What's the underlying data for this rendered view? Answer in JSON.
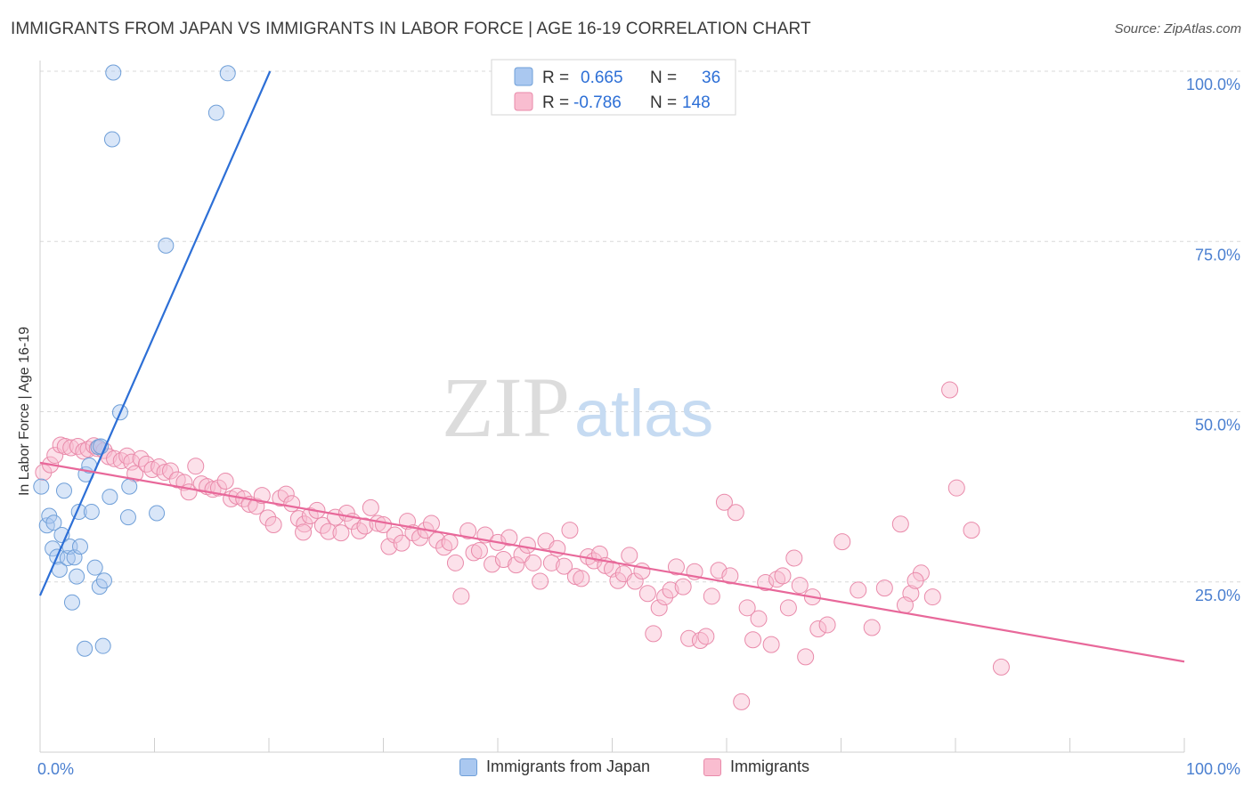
{
  "header": {
    "title": "IMMIGRANTS FROM JAPAN VS IMMIGRANTS IN LABOR FORCE | AGE 16-19 CORRELATION CHART",
    "source": "Source: ZipAtlas.com"
  },
  "watermark": {
    "part1": "ZIP",
    "part2": "atlas"
  },
  "legend_top": {
    "rows": [
      {
        "r_label": "R =",
        "r_value": "0.665",
        "n_label": "N =",
        "n_value": "36",
        "color": "#aac8f0",
        "border": "#6f9fd8"
      },
      {
        "r_label": "R =",
        "r_value": "-0.786",
        "n_label": "N =",
        "n_value": "148",
        "color": "#f9bdd0",
        "border": "#e98aaa"
      }
    ]
  },
  "colors": {
    "blue_fill": "rgba(170,200,240,0.45)",
    "blue_stroke": "#6f9fd8",
    "blue_line": "#2d6fd6",
    "pink_fill": "rgba(249,189,208,0.45)",
    "pink_stroke": "#e98aaa",
    "pink_line": "#e8689a",
    "tick_text": "#4a7fd0",
    "grid": "#d8d8d8"
  },
  "chart_data": {
    "type": "scatter",
    "title": "IMMIGRANTS FROM JAPAN VS IMMIGRANTS IN LABOR FORCE | AGE 16-19 CORRELATION CHART",
    "xlabel": "",
    "ylabel": "In Labor Force | Age 16-19",
    "xlim": [
      0,
      100
    ],
    "ylim": [
      0,
      105
    ],
    "x_tick_labels": [
      "0.0%",
      "100.0%"
    ],
    "y_ticks": [
      25,
      50,
      75,
      100
    ],
    "y_tick_labels": [
      "25.0%",
      "50.0%",
      "75.0%",
      "100.0%"
    ],
    "grid": "horizontal dashed",
    "legend_position": "bottom",
    "series": [
      {
        "name": "Immigrants from Japan",
        "R": 0.665,
        "N": 36,
        "trend": [
          [
            0.0,
            23.0
          ],
          [
            20.1,
            100.0
          ]
        ],
        "points": [
          [
            0.1,
            39.0
          ],
          [
            0.6,
            33.3
          ],
          [
            0.8,
            34.7
          ],
          [
            1.1,
            29.9
          ],
          [
            1.2,
            33.7
          ],
          [
            1.5,
            28.7
          ],
          [
            1.7,
            26.8
          ],
          [
            1.9,
            31.9
          ],
          [
            2.1,
            38.4
          ],
          [
            2.4,
            28.5
          ],
          [
            2.6,
            30.2
          ],
          [
            2.8,
            22.0
          ],
          [
            3.0,
            28.6
          ],
          [
            3.2,
            25.8
          ],
          [
            3.4,
            35.3
          ],
          [
            3.5,
            30.2
          ],
          [
            3.9,
            15.2
          ],
          [
            4.0,
            40.8
          ],
          [
            4.3,
            42.1
          ],
          [
            4.5,
            35.3
          ],
          [
            4.8,
            27.1
          ],
          [
            5.2,
            24.3
          ],
          [
            5.1,
            44.8
          ],
          [
            5.5,
            15.6
          ],
          [
            5.6,
            25.2
          ],
          [
            6.1,
            37.5
          ],
          [
            6.3,
            90.0
          ],
          [
            6.4,
            99.8
          ],
          [
            7.0,
            49.9
          ],
          [
            7.7,
            34.5
          ],
          [
            7.8,
            39.0
          ],
          [
            10.2,
            35.1
          ],
          [
            11.0,
            74.4
          ],
          [
            15.4,
            93.9
          ],
          [
            16.4,
            99.7
          ],
          [
            5.3,
            44.9
          ]
        ]
      },
      {
        "name": "Immigrants",
        "R": -0.786,
        "N": 148,
        "trend": [
          [
            0.0,
            42.5
          ],
          [
            100.0,
            13.3
          ]
        ],
        "points": [
          [
            0.3,
            41.1
          ],
          [
            0.9,
            42.2
          ],
          [
            1.3,
            43.6
          ],
          [
            1.8,
            45.1
          ],
          [
            2.2,
            44.9
          ],
          [
            2.7,
            44.7
          ],
          [
            3.3,
            44.9
          ],
          [
            3.8,
            44.2
          ],
          [
            4.2,
            44.5
          ],
          [
            4.7,
            45.0
          ],
          [
            5.0,
            44.6
          ],
          [
            5.6,
            44.3
          ],
          [
            6.0,
            43.4
          ],
          [
            6.5,
            43.1
          ],
          [
            7.1,
            42.8
          ],
          [
            7.6,
            43.5
          ],
          [
            8.0,
            42.6
          ],
          [
            8.3,
            40.9
          ],
          [
            8.8,
            43.1
          ],
          [
            9.3,
            42.3
          ],
          [
            9.8,
            41.5
          ],
          [
            10.4,
            41.9
          ],
          [
            10.9,
            41.1
          ],
          [
            11.4,
            41.3
          ],
          [
            12.0,
            40.0
          ],
          [
            12.6,
            39.6
          ],
          [
            13.0,
            38.2
          ],
          [
            13.6,
            42.0
          ],
          [
            14.1,
            39.4
          ],
          [
            14.6,
            39.0
          ],
          [
            15.1,
            38.6
          ],
          [
            15.6,
            38.8
          ],
          [
            16.2,
            39.8
          ],
          [
            16.7,
            37.2
          ],
          [
            17.2,
            37.6
          ],
          [
            17.8,
            37.2
          ],
          [
            18.3,
            36.4
          ],
          [
            18.9,
            36.1
          ],
          [
            19.4,
            37.7
          ],
          [
            19.9,
            34.4
          ],
          [
            20.4,
            33.4
          ],
          [
            21.0,
            37.3
          ],
          [
            21.5,
            37.9
          ],
          [
            22.0,
            36.5
          ],
          [
            22.6,
            34.3
          ],
          [
            23.1,
            33.5
          ],
          [
            23.6,
            34.7
          ],
          [
            24.2,
            35.5
          ],
          [
            24.7,
            33.3
          ],
          [
            25.2,
            32.4
          ],
          [
            25.8,
            34.5
          ],
          [
            26.3,
            32.2
          ],
          [
            26.8,
            35.1
          ],
          [
            27.3,
            33.9
          ],
          [
            27.9,
            32.5
          ],
          [
            28.4,
            33.2
          ],
          [
            28.9,
            35.9
          ],
          [
            29.5,
            33.6
          ],
          [
            30.0,
            33.4
          ],
          [
            30.5,
            30.2
          ],
          [
            31.0,
            31.9
          ],
          [
            31.6,
            30.7
          ],
          [
            32.1,
            33.9
          ],
          [
            32.6,
            32.2
          ],
          [
            33.2,
            31.5
          ],
          [
            33.7,
            32.6
          ],
          [
            34.2,
            33.6
          ],
          [
            34.7,
            31.1
          ],
          [
            35.3,
            30.1
          ],
          [
            35.8,
            30.8
          ],
          [
            36.3,
            27.8
          ],
          [
            36.8,
            22.9
          ],
          [
            37.4,
            32.5
          ],
          [
            37.9,
            29.3
          ],
          [
            38.4,
            29.6
          ],
          [
            38.9,
            31.9
          ],
          [
            39.5,
            27.6
          ],
          [
            40.0,
            30.8
          ],
          [
            40.5,
            28.3
          ],
          [
            41.0,
            31.5
          ],
          [
            41.6,
            27.5
          ],
          [
            42.1,
            29.0
          ],
          [
            42.6,
            30.4
          ],
          [
            43.1,
            27.8
          ],
          [
            43.7,
            25.1
          ],
          [
            44.2,
            31.0
          ],
          [
            44.7,
            27.8
          ],
          [
            45.2,
            29.9
          ],
          [
            45.8,
            27.3
          ],
          [
            46.3,
            32.6
          ],
          [
            46.8,
            25.8
          ],
          [
            47.3,
            25.5
          ],
          [
            47.9,
            28.7
          ],
          [
            48.4,
            28.1
          ],
          [
            48.9,
            29.1
          ],
          [
            49.4,
            27.4
          ],
          [
            50.0,
            26.9
          ],
          [
            50.5,
            25.2
          ],
          [
            51.0,
            26.2
          ],
          [
            51.5,
            28.9
          ],
          [
            52.0,
            25.1
          ],
          [
            52.6,
            26.6
          ],
          [
            53.1,
            23.3
          ],
          [
            53.6,
            17.4
          ],
          [
            54.1,
            21.2
          ],
          [
            54.6,
            22.8
          ],
          [
            55.1,
            23.8
          ],
          [
            55.6,
            27.2
          ],
          [
            56.2,
            24.3
          ],
          [
            56.7,
            16.7
          ],
          [
            57.2,
            26.5
          ],
          [
            57.7,
            16.4
          ],
          [
            58.2,
            17.0
          ],
          [
            58.7,
            22.9
          ],
          [
            59.3,
            26.7
          ],
          [
            59.8,
            36.7
          ],
          [
            60.3,
            25.9
          ],
          [
            60.8,
            35.2
          ],
          [
            61.3,
            7.4
          ],
          [
            61.8,
            21.2
          ],
          [
            62.3,
            16.5
          ],
          [
            62.8,
            19.6
          ],
          [
            63.4,
            24.9
          ],
          [
            63.9,
            15.8
          ],
          [
            64.4,
            25.4
          ],
          [
            64.9,
            25.9
          ],
          [
            65.4,
            21.2
          ],
          [
            65.9,
            28.5
          ],
          [
            66.4,
            24.5
          ],
          [
            66.9,
            14.0
          ],
          [
            67.5,
            22.8
          ],
          [
            68.0,
            18.1
          ],
          [
            70.1,
            30.9
          ],
          [
            71.5,
            23.8
          ],
          [
            72.7,
            18.3
          ],
          [
            73.8,
            24.1
          ],
          [
            75.2,
            33.5
          ],
          [
            76.1,
            23.3
          ],
          [
            77.0,
            26.3
          ],
          [
            78.0,
            22.8
          ],
          [
            80.1,
            38.8
          ],
          [
            81.4,
            32.6
          ],
          [
            75.6,
            21.6
          ],
          [
            76.5,
            25.2
          ],
          [
            68.8,
            18.7
          ],
          [
            79.5,
            53.2
          ],
          [
            84.0,
            12.5
          ],
          [
            23.0,
            32.3
          ]
        ]
      }
    ]
  }
}
